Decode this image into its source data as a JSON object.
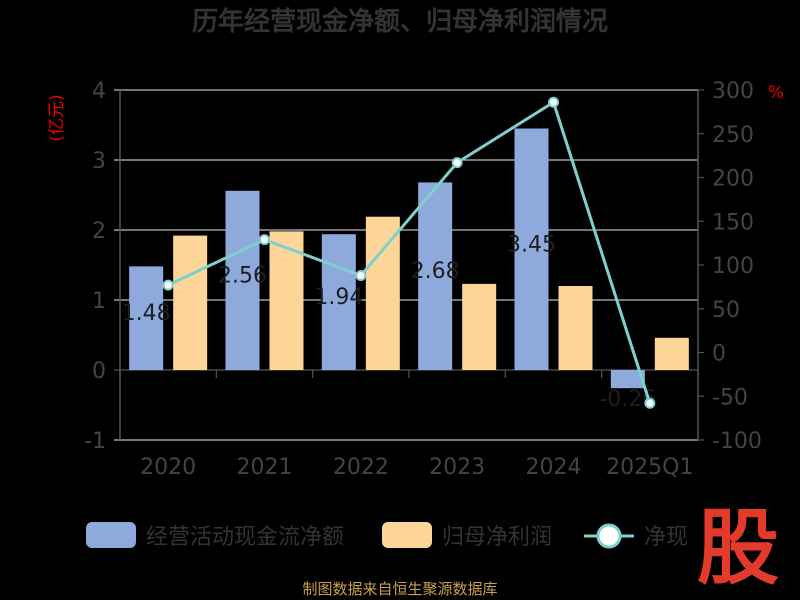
{
  "title": "历年经营现金净额、归母净利润情况",
  "left_unit": "(亿元)",
  "right_unit": "%",
  "source": "制图数据来自恒生聚源数据库",
  "logo_char": "股",
  "colors": {
    "bar_cash": "#8eaadc",
    "bar_profit": "#fdd598",
    "line": "#7fcfcf",
    "axis": "#555555",
    "grid": "#bbbbbb"
  },
  "chart_data": {
    "type": "bar",
    "categories": [
      "2020",
      "2021",
      "2022",
      "2023",
      "2024",
      "2025Q1"
    ],
    "series": [
      {
        "name": "经营活动现金流净额",
        "type": "bar",
        "axis": "left",
        "values": [
          1.48,
          2.56,
          1.94,
          2.68,
          3.45,
          -0.26
        ]
      },
      {
        "name": "归母净利润",
        "type": "bar",
        "axis": "left",
        "values": [
          1.92,
          1.98,
          2.19,
          1.23,
          1.2,
          0.46
        ]
      },
      {
        "name": "净现",
        "type": "line",
        "axis": "right",
        "values": [
          77,
          129,
          88,
          217,
          286,
          -58
        ]
      }
    ],
    "data_labels": [
      "1.48",
      "2.56",
      "1.94",
      "2.68",
      "3.45",
      "-0.26"
    ],
    "y_left": {
      "range": [
        -1,
        4
      ],
      "ticks": [
        "-1",
        "0",
        "1",
        "2",
        "3",
        "4"
      ]
    },
    "y_right": {
      "range": [
        -100,
        300
      ],
      "ticks": [
        "-100",
        "-50",
        "0",
        "50",
        "100",
        "150",
        "200",
        "250",
        "300"
      ]
    },
    "grid": true,
    "legend": "bottom"
  }
}
